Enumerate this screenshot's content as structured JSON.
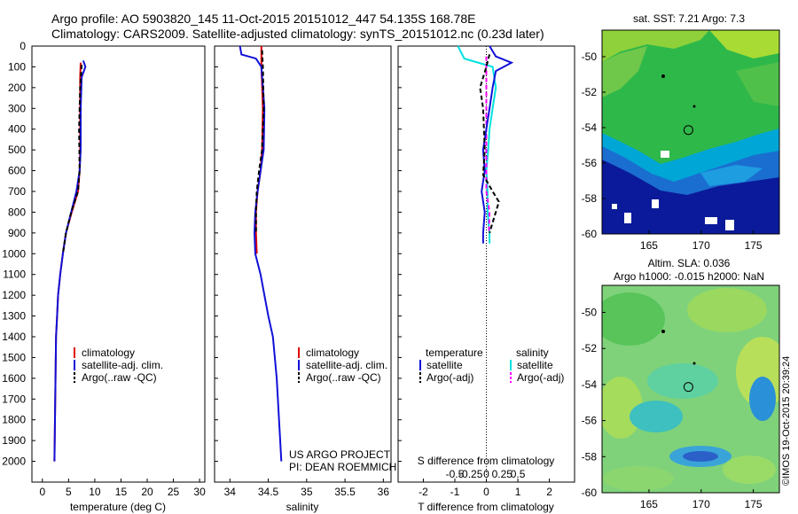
{
  "header": {
    "line1": "Argo profile: AO 5903820_145 11-Oct-2015 20151012_447 54.135S 168.78E",
    "line2": "Climatology: CARS2009. Satellite-adjusted climatology: synTS_20151012.nc (0.23d later)"
  },
  "colors": {
    "climatology": "#e00000",
    "satellite": "#1010d8",
    "argo": "#000000",
    "salinity_satellite": "#00e0e0",
    "salinity_argo": "#ff00ff"
  },
  "chart_data": [
    {
      "type": "line",
      "xlabel": "temperature (deg C)",
      "ylabel": "",
      "xlim": [
        -2,
        31
      ],
      "ylim": [
        2100,
        0
      ],
      "xticks": [
        "0",
        "5",
        "10",
        "15",
        "20",
        "25",
        "30"
      ],
      "yticks": [
        "0",
        "100",
        "200",
        "300",
        "400",
        "500",
        "600",
        "700",
        "800",
        "900",
        "1000",
        "1100",
        "1200",
        "1300",
        "1400",
        "1500",
        "1600",
        "1700",
        "1800",
        "1900",
        "2000"
      ],
      "legend": {
        "position": "lower-center",
        "entries": [
          "climatology",
          "satellite-adj. clim.",
          "Argo(..raw -QC)"
        ]
      },
      "series": [
        {
          "name": "climatology",
          "points": [
            [
              7.3,
              80
            ],
            [
              7.2,
              150
            ],
            [
              7.2,
              300
            ],
            [
              7.2,
              500
            ],
            [
              7.1,
              600
            ],
            [
              6.8,
              700
            ],
            [
              5.6,
              800
            ],
            [
              4.5,
              900
            ],
            [
              3.9,
              1000
            ],
            [
              3.4,
              1100
            ],
            [
              3.0,
              1200
            ],
            [
              2.8,
              1300
            ],
            [
              2.6,
              1400
            ],
            [
              2.5,
              1600
            ],
            [
              2.4,
              1800
            ],
            [
              2.3,
              2000
            ]
          ]
        },
        {
          "name": "satellite-adj. clim.",
          "points": [
            [
              7.8,
              70
            ],
            [
              8.2,
              100
            ],
            [
              7.5,
              150
            ],
            [
              7.3,
              300
            ],
            [
              7.3,
              500
            ],
            [
              7.1,
              600
            ],
            [
              6.5,
              700
            ],
            [
              5.5,
              800
            ],
            [
              4.5,
              900
            ],
            [
              3.9,
              1000
            ],
            [
              3.4,
              1100
            ],
            [
              3.0,
              1200
            ],
            [
              2.8,
              1300
            ],
            [
              2.6,
              1400
            ],
            [
              2.5,
              1600
            ],
            [
              2.4,
              1800
            ],
            [
              2.3,
              2000
            ]
          ]
        },
        {
          "name": "Argo(..raw -QC)",
          "points": [
            [
              7.5,
              90
            ],
            [
              7.2,
              200
            ],
            [
              7.0,
              400
            ],
            [
              7.1,
              600
            ],
            [
              6.8,
              700
            ],
            [
              5.5,
              800
            ],
            [
              4.5,
              900
            ],
            [
              3.9,
              1000
            ]
          ]
        }
      ]
    },
    {
      "type": "line",
      "xlabel": "salinity",
      "ylabel": "",
      "xlim": [
        33.8,
        36.1
      ],
      "ylim": [
        2100,
        0
      ],
      "xticks": [
        "34",
        "34.5",
        "35",
        "35.5",
        "36"
      ],
      "legend": {
        "position": "lower-center",
        "entries": [
          "climatology",
          "satellite-adj. clim.",
          "Argo(..raw -QC)"
        ]
      },
      "annotation": [
        "US ARGO PROJECT",
        "PI: DEAN ROEMMICH"
      ],
      "series": [
        {
          "name": "climatology",
          "points": [
            [
              34.41,
              0
            ],
            [
              34.41,
              100
            ],
            [
              34.43,
              300
            ],
            [
              34.42,
              500
            ],
            [
              34.4,
              600
            ],
            [
              34.36,
              700
            ],
            [
              34.34,
              800
            ],
            [
              34.34,
              900
            ],
            [
              34.35,
              1000
            ]
          ]
        },
        {
          "name": "satellite-adj. clim.",
          "points": [
            [
              34.13,
              0
            ],
            [
              34.15,
              40
            ],
            [
              34.34,
              60
            ],
            [
              34.41,
              100
            ],
            [
              34.43,
              200
            ],
            [
              34.45,
              300
            ],
            [
              34.44,
              500
            ],
            [
              34.4,
              600
            ],
            [
              34.36,
              700
            ],
            [
              34.33,
              800
            ],
            [
              34.32,
              900
            ],
            [
              34.33,
              1000
            ],
            [
              34.4,
              1100
            ],
            [
              34.45,
              1200
            ],
            [
              34.5,
              1300
            ],
            [
              34.56,
              1400
            ],
            [
              34.61,
              1600
            ],
            [
              34.64,
              1800
            ],
            [
              34.67,
              2000
            ]
          ]
        },
        {
          "name": "Argo(..raw -QC)",
          "points": [
            [
              34.42,
              20
            ],
            [
              34.43,
              100
            ],
            [
              34.44,
              300
            ],
            [
              34.42,
              500
            ],
            [
              34.38,
              600
            ],
            [
              34.35,
              700
            ],
            [
              34.34,
              800
            ],
            [
              34.34,
              900
            ]
          ]
        }
      ]
    },
    {
      "type": "line",
      "xlabel": "T difference from climatology",
      "xlabel_top": "S difference from climatology",
      "xlim": [
        -2.8,
        2.8
      ],
      "ylim": [
        2100,
        0
      ],
      "xticks": [
        "-2",
        "-1",
        "0",
        "1",
        "2"
      ],
      "xticks_top": [
        "-0.5",
        "-0.25",
        "0",
        "0.25",
        "0.5"
      ],
      "legend": {
        "position": "lower-center",
        "entries": [
          "temperature",
          "satellite",
          "Argo(-adj)",
          "salinity",
          "satellite",
          "Argo(-adj)"
        ]
      },
      "series": [
        {
          "name": "satellite",
          "group": "temperature",
          "points": [
            [
              0.1,
              0
            ],
            [
              0.3,
              50
            ],
            [
              0.8,
              80
            ],
            [
              0.3,
              120
            ],
            [
              0.2,
              200
            ],
            [
              0.1,
              300
            ],
            [
              -0.1,
              500
            ],
            [
              -0.05,
              600
            ],
            [
              -0.15,
              700
            ],
            [
              -0.05,
              800
            ],
            [
              -0.1,
              900
            ],
            [
              -0.1,
              950
            ]
          ]
        },
        {
          "name": "Argo(-adj)",
          "group": "temperature",
          "points": [
            [
              0.1,
              40
            ],
            [
              0.0,
              100
            ],
            [
              -0.2,
              200
            ],
            [
              -0.1,
              300
            ],
            [
              -0.05,
              500
            ],
            [
              -0.1,
              620
            ],
            [
              0.2,
              700
            ],
            [
              0.4,
              750
            ],
            [
              0.2,
              850
            ],
            [
              0.1,
              900
            ]
          ]
        },
        {
          "name": "satellite",
          "group": "salinity",
          "points": [
            [
              -0.45,
              0
            ],
            [
              -0.35,
              60
            ],
            [
              0.1,
              100
            ],
            [
              0.15,
              200
            ],
            [
              0.1,
              300
            ],
            [
              0.05,
              400
            ],
            [
              0.03,
              500
            ],
            [
              0.0,
              600
            ],
            [
              0.02,
              700
            ],
            [
              0.02,
              800
            ],
            [
              0.05,
              900
            ],
            [
              0.05,
              950
            ]
          ]
        },
        {
          "name": "Argo(-adj)",
          "group": "salinity",
          "points": [
            [
              0.0,
              50
            ],
            [
              0.0,
              150
            ],
            [
              0.0,
              300
            ],
            [
              0.0,
              500
            ],
            [
              0.0,
              620
            ],
            [
              0.0,
              700
            ],
            [
              0.05,
              800
            ],
            [
              0.04,
              900
            ]
          ]
        }
      ]
    }
  ],
  "maps": [
    {
      "title": "sat. SST: 7.21  Argo: 7.3",
      "xticks": [
        "165",
        "170",
        "175"
      ],
      "yticks": [
        "-50",
        "-52",
        "-54",
        "-56",
        "-58",
        "-60"
      ],
      "lon": [
        160.5,
        177.5
      ],
      "lat": [
        -48.5,
        -60
      ],
      "marker": [
        168.78,
        -54.135
      ]
    },
    {
      "title_line1": "Altim. SLA: 0.036",
      "title_line2": "Argo h1000: -0.015  h2000: NaN",
      "xticks": [
        "165",
        "170",
        "175"
      ],
      "yticks": [
        "-50",
        "-52",
        "-54",
        "-56",
        "-58",
        "-60"
      ],
      "lon": [
        160.5,
        177.5
      ],
      "lat": [
        -48.5,
        -60
      ],
      "marker": [
        168.78,
        -54.135
      ]
    }
  ],
  "watermark": "©IMOS 19-Oct-2015 20:39:24"
}
